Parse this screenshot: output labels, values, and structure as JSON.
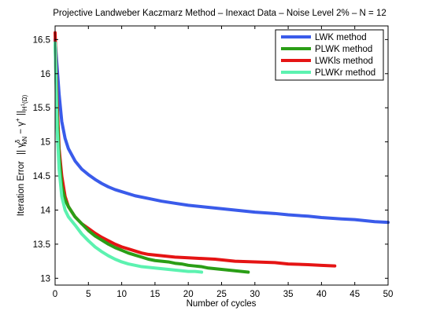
{
  "chart_data": {
    "type": "line",
    "title": "Projective Landweber Kaczmarz Method  –  Inexact Data  –  Noise Level 2%  –  N = 12",
    "xlabel": "Number of cycles",
    "ylabel": "Iteration Error   || γᴺₖᵟ − γ⁺ ||H¹(Ω)",
    "ylabel_parts": {
      "prefix": "Iteration Error",
      "norm_open": "|| γ",
      "sup_delta": "δ",
      "sub_kn": "kN",
      "minus": " − γ",
      "sup_plus": "+",
      "norm_close": " ||",
      "sub_space": "H",
      "sub_space_sup": "1",
      "sub_space_arg": "(Ω)"
    },
    "xlim": [
      0,
      50
    ],
    "ylim": [
      12.9,
      16.7
    ],
    "xticks": [
      0,
      5,
      10,
      15,
      20,
      25,
      30,
      35,
      40,
      45,
      50
    ],
    "yticks": [
      13,
      13.5,
      14,
      14.5,
      15,
      15.5,
      16,
      16.5
    ],
    "ytick_labels": [
      "13",
      "13.5",
      "14",
      "14.5",
      "15",
      "15.5",
      "16",
      "16.5"
    ],
    "grid": false,
    "legend_position": "top-right",
    "series": [
      {
        "name": "LWK method",
        "color": "#3a5bea",
        "points": [
          [
            0,
            16.5
          ],
          [
            0.3,
            16.1
          ],
          [
            0.6,
            15.7
          ],
          [
            1,
            15.3
          ],
          [
            1.5,
            15.05
          ],
          [
            2,
            14.9
          ],
          [
            3,
            14.72
          ],
          [
            4,
            14.6
          ],
          [
            5,
            14.52
          ],
          [
            6,
            14.45
          ],
          [
            7,
            14.39
          ],
          [
            8,
            14.34
          ],
          [
            9,
            14.3
          ],
          [
            10,
            14.27
          ],
          [
            12,
            14.21
          ],
          [
            14,
            14.17
          ],
          [
            16,
            14.13
          ],
          [
            18,
            14.1
          ],
          [
            20,
            14.07
          ],
          [
            22,
            14.05
          ],
          [
            25,
            14.02
          ],
          [
            28,
            13.99
          ],
          [
            30,
            13.97
          ],
          [
            33,
            13.95
          ],
          [
            35,
            13.93
          ],
          [
            38,
            13.91
          ],
          [
            40,
            13.89
          ],
          [
            43,
            13.87
          ],
          [
            45,
            13.86
          ],
          [
            48,
            13.83
          ],
          [
            50,
            13.82
          ]
        ]
      },
      {
        "name": "PLWK method",
        "color": "#2a9e16",
        "points": [
          [
            0,
            16.45
          ],
          [
            0.3,
            15.4
          ],
          [
            0.6,
            14.8
          ],
          [
            1,
            14.35
          ],
          [
            1.5,
            14.15
          ],
          [
            2,
            14.05
          ],
          [
            3,
            13.9
          ],
          [
            4,
            13.8
          ],
          [
            5,
            13.7
          ],
          [
            6,
            13.62
          ],
          [
            7,
            13.56
          ],
          [
            8,
            13.5
          ],
          [
            9,
            13.45
          ],
          [
            10,
            13.41
          ],
          [
            11,
            13.37
          ],
          [
            12,
            13.34
          ],
          [
            13,
            13.31
          ],
          [
            14,
            13.28
          ],
          [
            15,
            13.26
          ],
          [
            16,
            13.25
          ],
          [
            17,
            13.24
          ],
          [
            18,
            13.22
          ],
          [
            19,
            13.21
          ],
          [
            20,
            13.19
          ],
          [
            21,
            13.18
          ],
          [
            22,
            13.17
          ],
          [
            23,
            13.15
          ],
          [
            24,
            13.14
          ],
          [
            25,
            13.13
          ],
          [
            26,
            13.12
          ],
          [
            27,
            13.11
          ],
          [
            28,
            13.1
          ],
          [
            29,
            13.09
          ]
        ]
      },
      {
        "name": "LWKls method",
        "color": "#e51414",
        "points": [
          [
            0,
            16.6
          ],
          [
            0.3,
            15.6
          ],
          [
            0.6,
            14.9
          ],
          [
            1,
            14.5
          ],
          [
            1.5,
            14.2
          ],
          [
            2,
            14.05
          ],
          [
            3,
            13.9
          ],
          [
            4,
            13.8
          ],
          [
            5,
            13.73
          ],
          [
            6,
            13.66
          ],
          [
            7,
            13.6
          ],
          [
            8,
            13.55
          ],
          [
            9,
            13.5
          ],
          [
            10,
            13.46
          ],
          [
            11,
            13.43
          ],
          [
            12,
            13.4
          ],
          [
            13,
            13.37
          ],
          [
            14,
            13.35
          ],
          [
            15,
            13.34
          ],
          [
            16,
            13.33
          ],
          [
            18,
            13.31
          ],
          [
            20,
            13.3
          ],
          [
            22,
            13.29
          ],
          [
            24,
            13.28
          ],
          [
            25,
            13.27
          ],
          [
            27,
            13.25
          ],
          [
            30,
            13.24
          ],
          [
            33,
            13.23
          ],
          [
            35,
            13.21
          ],
          [
            38,
            13.2
          ],
          [
            40,
            13.19
          ],
          [
            42,
            13.18
          ]
        ]
      },
      {
        "name": "PLWKr method",
        "color": "#5cf2b0",
        "points": [
          [
            0,
            16.45
          ],
          [
            0.3,
            15.2
          ],
          [
            0.6,
            14.6
          ],
          [
            1,
            14.2
          ],
          [
            1.5,
            14.0
          ],
          [
            2,
            13.9
          ],
          [
            3,
            13.78
          ],
          [
            4,
            13.65
          ],
          [
            5,
            13.55
          ],
          [
            6,
            13.46
          ],
          [
            7,
            13.39
          ],
          [
            8,
            13.33
          ],
          [
            9,
            13.28
          ],
          [
            10,
            13.24
          ],
          [
            11,
            13.21
          ],
          [
            12,
            13.19
          ],
          [
            13,
            13.17
          ],
          [
            14,
            13.16
          ],
          [
            15,
            13.15
          ],
          [
            16,
            13.14
          ],
          [
            17,
            13.13
          ],
          [
            18,
            13.12
          ],
          [
            19,
            13.11
          ],
          [
            20,
            13.1
          ],
          [
            21,
            13.1
          ],
          [
            22,
            13.09
          ]
        ]
      }
    ]
  }
}
